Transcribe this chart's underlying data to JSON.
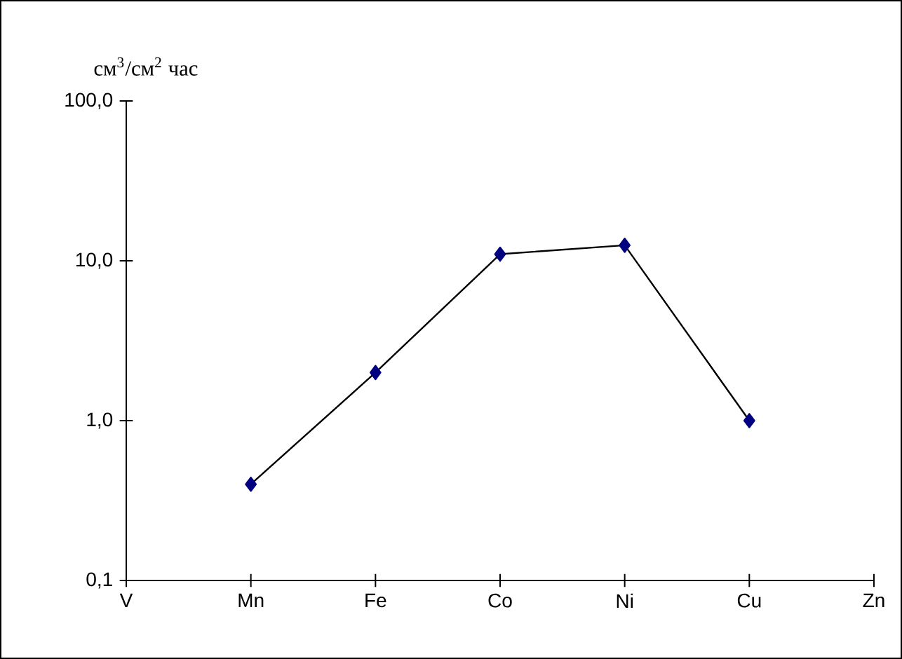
{
  "chart_data": {
    "type": "line",
    "ylabel": "см$^{3}$/см$^{2}$ час",
    "categories": [
      "V",
      "Mn",
      "Fe",
      "Co",
      "Ni",
      "Cu",
      "Zn"
    ],
    "series": [
      {
        "color": "#000080",
        "values": [
          null,
          0.4,
          2.0,
          11.0,
          12.5,
          1.0,
          null
        ]
      }
    ],
    "log": "y",
    "ylim": [
      0.1,
      100
    ],
    "yticks": [
      {
        "value": 0.1,
        "label": "0,1"
      },
      {
        "value": 1,
        "label": "1,0"
      },
      {
        "value": 10,
        "label": "10,0"
      },
      {
        "value": 100,
        "label": "100,0"
      }
    ],
    "marker": "diamond",
    "line_style": "solid"
  }
}
